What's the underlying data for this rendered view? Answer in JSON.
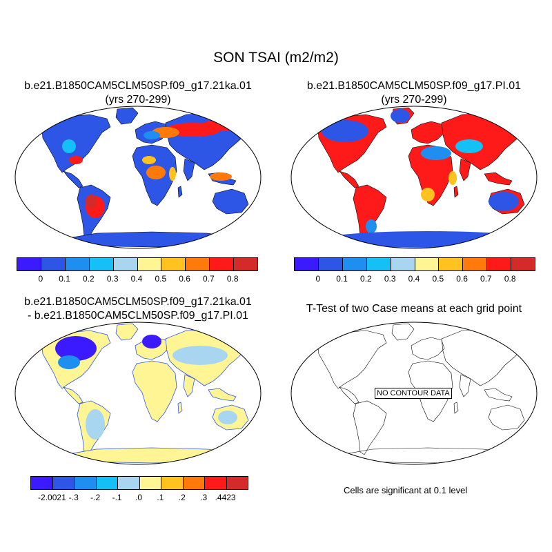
{
  "figure": {
    "main_title": "SON TSAI (m2/m2)"
  },
  "panels": [
    {
      "title_line1": "b.e21.B1850CAM5CLM50SP.f09_g17.21ka.01",
      "title_line2": "(yrs 270-299)"
    },
    {
      "title_line1": "b.e21.B1850CAM5CLM50SP.f09_g17.PI.01",
      "title_line2": "(yrs 270-299)"
    },
    {
      "title_line1": "b.e21.B1850CAM5CLM50SP.f09_g17.21ka.01",
      "title_line2": "- b.e21.B1850CAM5CLM50SP.f09_g17.PI.01"
    },
    {
      "title_line1": "T-Test of two Case means at each grid point",
      "title_line2": ""
    }
  ],
  "colorbar_abs": {
    "colors": [
      "#3c1aff",
      "#2d55e6",
      "#1e8ff0",
      "#14c0f5",
      "#a8d6f0",
      "#fff595",
      "#ffc21f",
      "#ff7a0a",
      "#ff1a1a",
      "#d42a2a"
    ],
    "labels": [
      "0",
      "0.1",
      "0.2",
      "0.3",
      "0.4",
      "0.5",
      "0.6",
      "0.7",
      "0.8"
    ]
  },
  "colorbar_diff": {
    "colors": [
      "#3c1aff",
      "#2d55e6",
      "#1e8ff0",
      "#14c0f5",
      "#a8d6f0",
      "#fff595",
      "#ffc21f",
      "#ff7a0a",
      "#ff1a1a",
      "#d42a2a"
    ],
    "labels": [
      "-2.0021",
      "-.3",
      "-.2",
      "-.1",
      ".0",
      ".1",
      ".2",
      ".3",
      ".4423"
    ]
  },
  "ttest": {
    "no_data_label": "NO CONTOUR DATA",
    "significance_note": "Cells are significant at 0.1 level"
  }
}
